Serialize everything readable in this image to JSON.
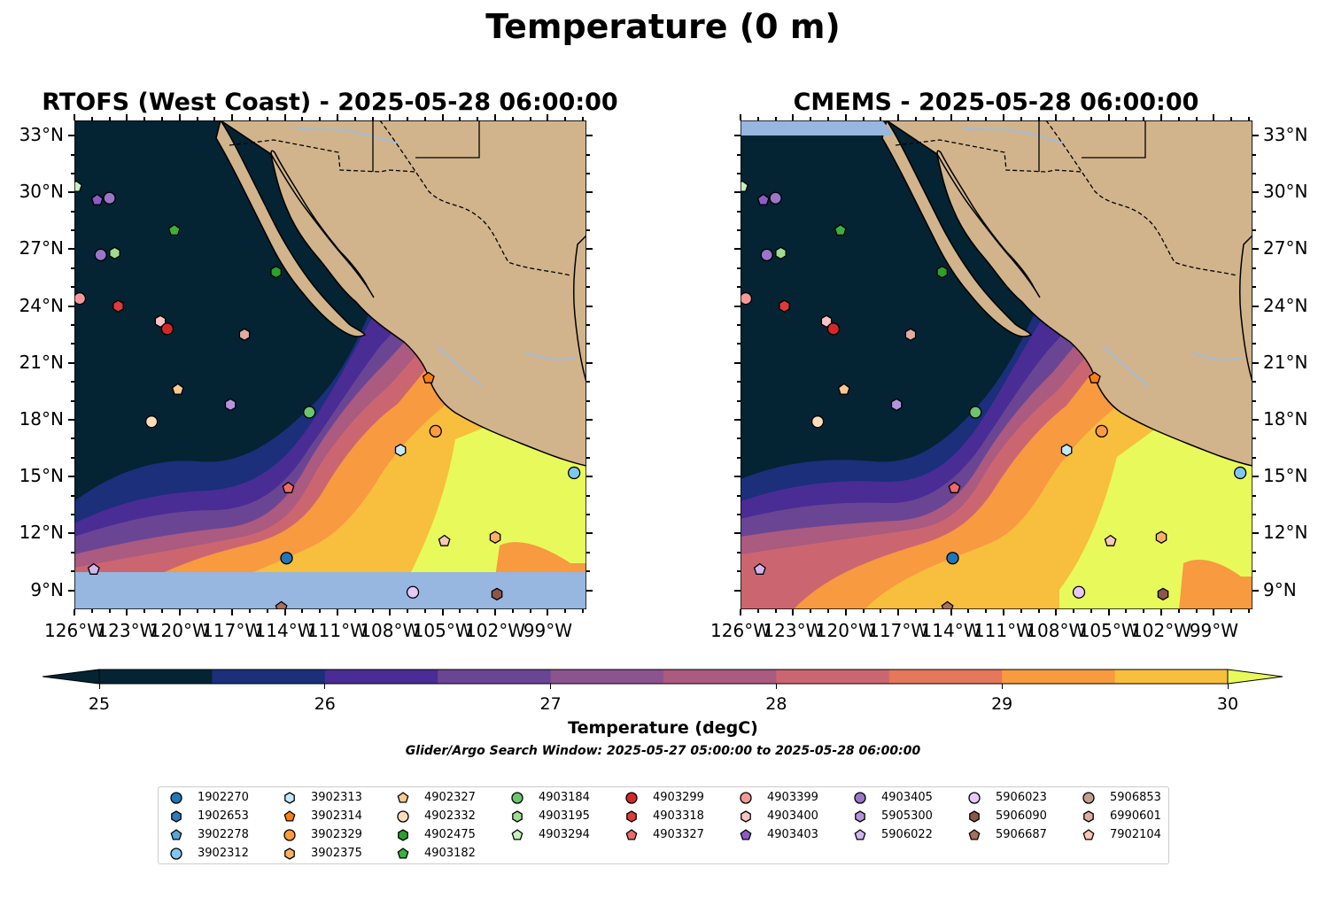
{
  "figure": {
    "title": "Temperature (0 m)",
    "left_panel_title": "RTOFS (West Coast) - 2025-05-28 06:00:00",
    "right_panel_title": "CMEMS - 2025-05-28 06:00:00",
    "search_window": "Glider/Argo Search Window: 2025-05-27 05:00:00 to 2025-05-28 06:00:00"
  },
  "map": {
    "lon_ticks": [
      "126°W",
      "123°W",
      "120°W",
      "117°W",
      "114°W",
      "111°W",
      "108°W",
      "105°W",
      "102°W",
      "99°W"
    ],
    "lat_ticks": [
      "33°N",
      "30°N",
      "27°N",
      "24°N",
      "21°N",
      "18°N",
      "15°N",
      "12°N",
      "9°N"
    ],
    "lon_range": [
      -126,
      -96.8
    ],
    "lat_range": [
      8.0,
      33.8
    ],
    "colors": {
      "land": "#d2b48c",
      "nodata": "#97b6e0",
      "coast": "#000000",
      "rivers": "#a3bbd6"
    }
  },
  "colorbar": {
    "label": "Temperature (degC)",
    "ticks": [
      "25",
      "26",
      "27",
      "28",
      "29",
      "30"
    ],
    "range": [
      25,
      30
    ],
    "extend": "both",
    "colors": [
      "#042333",
      "#1b2f7a",
      "#4a2c95",
      "#6a4593",
      "#8b548e",
      "#ab5a80",
      "#cb6670",
      "#e5775b",
      "#f79a40",
      "#f8be3d",
      "#e8fa5b"
    ]
  },
  "legend": {
    "columns": [
      [
        {
          "id": "1902270",
          "marker": "circle",
          "color": "#1f77b4"
        },
        {
          "id": "1902653",
          "marker": "hexagon",
          "color": "#2b7bbb"
        },
        {
          "id": "3902278",
          "marker": "pentagon",
          "color": "#5aa5d8"
        },
        {
          "id": "3902312",
          "marker": "circle",
          "color": "#80c7f0"
        }
      ],
      [
        {
          "id": "3902313",
          "marker": "hexagon",
          "color": "#c6e8fb"
        },
        {
          "id": "3902314",
          "marker": "pentagon",
          "color": "#ff7f0e"
        },
        {
          "id": "3902329",
          "marker": "circle",
          "color": "#ff9b3d"
        },
        {
          "id": "3902375",
          "marker": "hexagon",
          "color": "#ffb060"
        }
      ],
      [
        {
          "id": "4902327",
          "marker": "pentagon",
          "color": "#ffc890"
        },
        {
          "id": "4902332",
          "marker": "circle",
          "color": "#ffdcbc"
        },
        {
          "id": "4902475",
          "marker": "hexagon",
          "color": "#2ca02c"
        },
        {
          "id": "4903182",
          "marker": "pentagon",
          "color": "#3cb03c"
        }
      ],
      [
        {
          "id": "4903184",
          "marker": "circle",
          "color": "#6cc46c"
        },
        {
          "id": "4903195",
          "marker": "hexagon",
          "color": "#a0dc90"
        },
        {
          "id": "4903294",
          "marker": "pentagon",
          "color": "#c8f0c0"
        }
      ],
      [
        {
          "id": "4903299",
          "marker": "circle",
          "color": "#d62728"
        },
        {
          "id": "4903318",
          "marker": "hexagon",
          "color": "#e03a3a"
        },
        {
          "id": "4903327",
          "marker": "pentagon",
          "color": "#ee6a6a"
        }
      ],
      [
        {
          "id": "4903399",
          "marker": "circle",
          "color": "#f59a98"
        },
        {
          "id": "4903400",
          "marker": "hexagon",
          "color": "#fbc4c4"
        },
        {
          "id": "4903403",
          "marker": "pentagon",
          "color": "#8c5cc4"
        }
      ],
      [
        {
          "id": "4903405",
          "marker": "circle",
          "color": "#9a76c8"
        },
        {
          "id": "5905300",
          "marker": "hexagon",
          "color": "#b394db"
        },
        {
          "id": "5906022",
          "marker": "pentagon",
          "color": "#d2b6ee"
        }
      ],
      [
        {
          "id": "5906023",
          "marker": "circle",
          "color": "#e6c9f8"
        },
        {
          "id": "5906090",
          "marker": "hexagon",
          "color": "#8c564b"
        },
        {
          "id": "5906687",
          "marker": "pentagon",
          "color": "#a8705e"
        }
      ],
      [
        {
          "id": "5906853",
          "marker": "circle",
          "color": "#c49c94"
        },
        {
          "id": "6990601",
          "marker": "hexagon",
          "color": "#e0aba0"
        },
        {
          "id": "7902104",
          "marker": "pentagon",
          "color": "#f8c8b4"
        }
      ]
    ]
  },
  "floats": [
    {
      "id": "4903294",
      "lon": -125.9,
      "lat": 30.3
    },
    {
      "id": "4903405",
      "lon": -124.0,
      "lat": 29.7
    },
    {
      "id": "4903403",
      "lon": -124.7,
      "lat": 29.6
    },
    {
      "id": "4903182",
      "lon": -120.3,
      "lat": 28.0
    },
    {
      "id": "4903405",
      "lon": -124.5,
      "lat": 26.7
    },
    {
      "id": "4903195",
      "lon": -123.7,
      "lat": 26.8
    },
    {
      "id": "4902475",
      "lon": -114.5,
      "lat": 25.8
    },
    {
      "id": "4903399",
      "lon": -125.7,
      "lat": 24.4
    },
    {
      "id": "4903318",
      "lon": -123.5,
      "lat": 24.0
    },
    {
      "id": "4903400",
      "lon": -121.1,
      "lat": 23.2
    },
    {
      "id": "4903299",
      "lon": -120.7,
      "lat": 22.8
    },
    {
      "id": "6990601",
      "lon": -116.3,
      "lat": 22.5
    },
    {
      "id": "4902327",
      "lon": -120.1,
      "lat": 19.6
    },
    {
      "id": "5905300",
      "lon": -117.1,
      "lat": 18.8
    },
    {
      "id": "4903184",
      "lon": -112.6,
      "lat": 18.4
    },
    {
      "id": "4902332",
      "lon": -121.6,
      "lat": 17.9
    },
    {
      "id": "3902314",
      "lon": -105.8,
      "lat": 20.2
    },
    {
      "id": "3902329",
      "lon": -105.4,
      "lat": 17.4
    },
    {
      "id": "3902313",
      "lon": -107.4,
      "lat": 16.4
    },
    {
      "id": "3902312",
      "lon": -97.5,
      "lat": 15.2
    },
    {
      "id": "4903327",
      "lon": -113.8,
      "lat": 14.4
    },
    {
      "id": "7902104",
      "lon": -104.9,
      "lat": 11.6
    },
    {
      "id": "3902375",
      "lon": -102.0,
      "lat": 11.8
    },
    {
      "id": "1902270",
      "lon": -113.9,
      "lat": 10.7
    },
    {
      "id": "5906022",
      "lon": -124.9,
      "lat": 10.1
    },
    {
      "id": "5906023",
      "lon": -106.7,
      "lat": 8.9
    },
    {
      "id": "5906090",
      "lon": -101.9,
      "lat": 8.8
    },
    {
      "id": "5906687",
      "lon": -114.2,
      "lat": 8.1
    }
  ]
}
